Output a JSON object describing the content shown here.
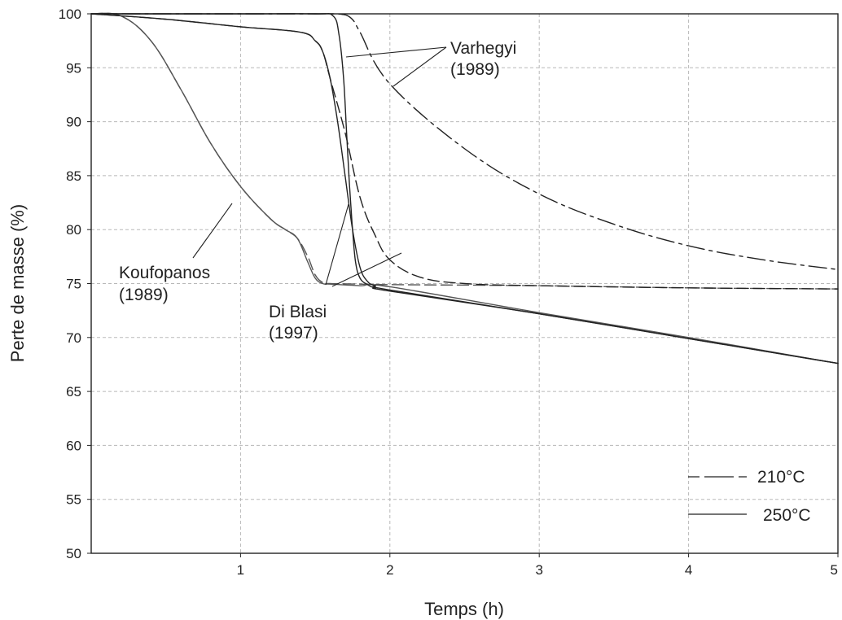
{
  "chart_data": {
    "type": "line",
    "xlabel": "Temps (h)",
    "ylabel": "Perte de masse (%)",
    "xlim": [
      0,
      5
    ],
    "ylim": [
      50,
      100
    ],
    "xticks": [
      "1",
      "2",
      "3",
      "4",
      "5"
    ],
    "yticks": [
      "50",
      "55",
      "60",
      "65",
      "70",
      "75",
      "80",
      "85",
      "90",
      "95",
      "100"
    ],
    "grid": true,
    "legend_position": "bottom-right",
    "legend": [
      {
        "label": "210°C",
        "style": "dashed"
      },
      {
        "label": "250°C",
        "style": "solid"
      }
    ],
    "annotations": [
      {
        "lines": [
          "Varhegyi",
          "(1989)"
        ]
      },
      {
        "lines": [
          "Koufopanos",
          "(1989)"
        ]
      },
      {
        "lines": [
          "Di Blasi",
          "(1997)"
        ]
      }
    ],
    "series": [
      {
        "style": "dashed",
        "color": "#555555",
        "x": [
          0,
          0.2,
          0.4,
          0.6,
          0.8,
          1.0,
          1.2,
          1.3,
          1.38,
          1.45,
          1.5,
          1.55,
          1.6,
          1.8,
          2.0,
          3.0,
          4.0,
          5.0
        ],
        "y": [
          100,
          99.8,
          97.5,
          93,
          88,
          84,
          81,
          80,
          79.2,
          77.5,
          75.8,
          75.1,
          75.0,
          74.95,
          74.9,
          74.8,
          74.6,
          74.5
        ]
      },
      {
        "style": "solid",
        "color": "#555555",
        "x": [
          0,
          0.2,
          0.4,
          0.6,
          0.8,
          1.0,
          1.2,
          1.3,
          1.38,
          1.45,
          1.5,
          1.55,
          1.6,
          1.8,
          2.0,
          3.0,
          4.0,
          5.0
        ],
        "y": [
          100,
          99.8,
          97.5,
          93,
          88,
          84,
          81,
          80,
          79.2,
          77.0,
          75.5,
          75.0,
          74.95,
          74.8,
          74.7,
          72.3,
          70.0,
          67.6
        ]
      },
      {
        "style": "dashed",
        "color": "#222222",
        "x": [
          0,
          0.5,
          1.0,
          1.4,
          1.5,
          1.55,
          1.6,
          1.7,
          1.8,
          1.9,
          2.0,
          2.2,
          2.5,
          3.0,
          4.0,
          5.0
        ],
        "y": [
          100,
          99.5,
          98.8,
          98.3,
          97.5,
          96.5,
          94,
          89,
          83,
          79.5,
          77.2,
          75.6,
          75.0,
          74.8,
          74.6,
          74.5
        ]
      },
      {
        "style": "solid",
        "color": "#222222",
        "x": [
          0,
          0.5,
          1.0,
          1.4,
          1.5,
          1.55,
          1.6,
          1.65,
          1.7,
          1.75,
          1.8,
          1.85,
          1.9,
          2.0,
          3.0,
          4.0,
          5.0
        ],
        "y": [
          100,
          99.5,
          98.8,
          98.3,
          97.5,
          96.5,
          94,
          90,
          85,
          80,
          76.5,
          75.2,
          74.8,
          74.4,
          72.2,
          69.9,
          67.6
        ]
      },
      {
        "style": "dashdot",
        "color": "#222222",
        "x": [
          0,
          0.5,
          1.0,
          1.5,
          1.62,
          1.68,
          1.72,
          1.76,
          1.8,
          2.0,
          2.5,
          3.0,
          3.5,
          4.0,
          4.5,
          5.0
        ],
        "y": [
          100,
          100,
          100,
          100,
          100,
          99.95,
          99.8,
          99.3,
          98.3,
          93.5,
          87.5,
          83.3,
          80.5,
          78.5,
          77.2,
          76.3
        ]
      },
      {
        "style": "solid",
        "color": "#222222",
        "x": [
          0,
          0.5,
          1.0,
          1.5,
          1.62,
          1.66,
          1.69,
          1.71,
          1.73,
          1.75,
          1.77,
          1.8,
          1.85,
          1.9,
          2.0,
          3.0,
          4.0,
          5.0
        ],
        "y": [
          100,
          100,
          100,
          100,
          99.8,
          98,
          94,
          89,
          84,
          80,
          77,
          75.5,
          74.9,
          74.6,
          74.3,
          72.2,
          69.9,
          67.6
        ]
      }
    ]
  }
}
